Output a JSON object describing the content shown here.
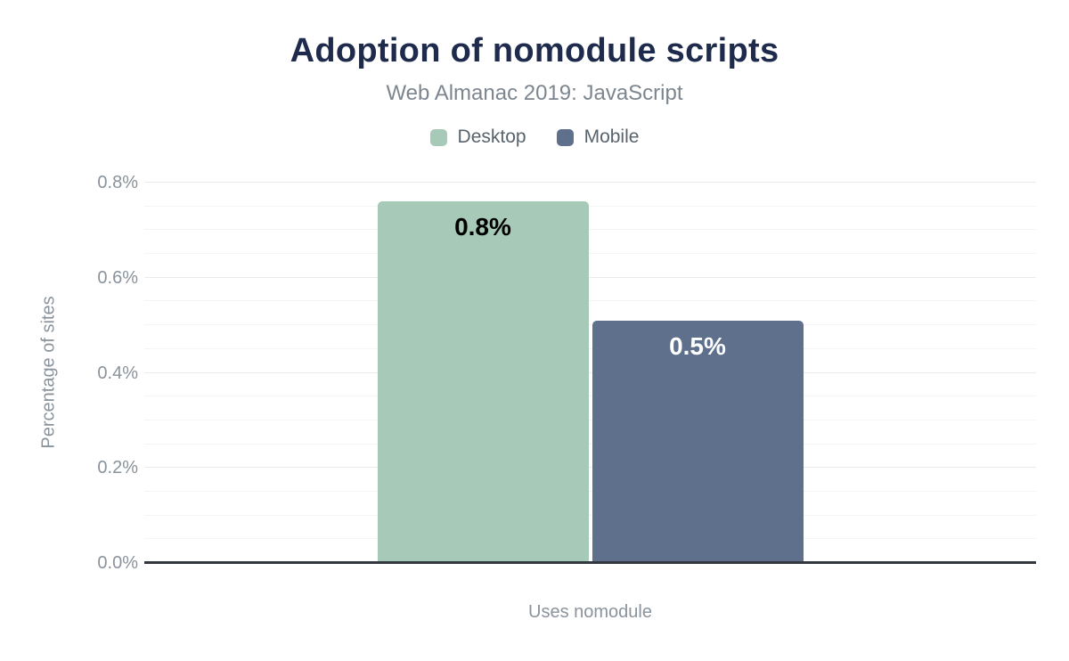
{
  "chart_data": {
    "type": "bar",
    "title": "Adoption of nomodule scripts",
    "subtitle": "Web Almanac 2019: JavaScript",
    "categories": [
      "Uses nomodule"
    ],
    "series": [
      {
        "name": "Desktop",
        "values": [
          0.76
        ],
        "display_labels": [
          "0.8%"
        ],
        "color": "#a7c9b8",
        "label_color": "#000000"
      },
      {
        "name": "Mobile",
        "values": [
          0.51
        ],
        "display_labels": [
          "0.5%"
        ],
        "color": "#5f708c",
        "label_color": "#ffffff"
      }
    ],
    "xlabel": "",
    "ylabel": "Percentage of sites",
    "ylim": [
      0,
      0.8
    ],
    "y_ticks": {
      "values": [
        0,
        0.2,
        0.4,
        0.6,
        0.8
      ],
      "labels": [
        "0.0%",
        "0.2%",
        "0.4%",
        "0.6%",
        "0.8%"
      ]
    },
    "y_minor_tick_interval": 0.05,
    "y_tick_format": "percent",
    "grid": "horizontal",
    "legend_position": "top",
    "colors": {
      "title_text": "#1f2b4c",
      "subtitle_text": "#7d868f",
      "axis_text": "#8a939b",
      "legend_text": "#59636c",
      "baseline": "#32383e",
      "gridline_major": "#e9ebed",
      "gridline_minor": "#f3f4f6",
      "background": "#ffffff"
    }
  }
}
